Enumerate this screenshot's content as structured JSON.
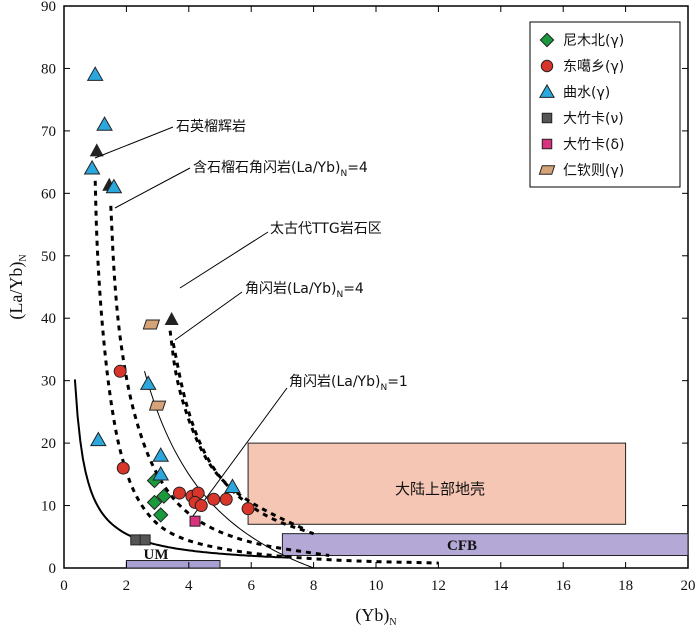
{
  "chart_data": {
    "type": "scatter",
    "xlabel": "(Yb)",
    "xlabel_sub": "N",
    "ylabel": "(La/Yb)",
    "ylabel_sub": "N",
    "xlim": [
      0,
      20
    ],
    "ylim": [
      0,
      90
    ],
    "x_ticks": [
      0,
      2,
      4,
      6,
      8,
      10,
      12,
      14,
      16,
      18,
      20
    ],
    "y_ticks": [
      0,
      10,
      20,
      30,
      40,
      50,
      60,
      70,
      80,
      90
    ],
    "series": [
      {
        "name": "尼木北(γ)",
        "marker": "diamond",
        "color": "#1a9a3c",
        "points": [
          [
            2.9,
            14
          ],
          [
            3.2,
            11.5
          ],
          [
            2.9,
            10.5
          ],
          [
            3.1,
            8.5
          ]
        ]
      },
      {
        "name": "东噶乡(γ)",
        "marker": "circle",
        "color": "#d9352a",
        "points": [
          [
            1.8,
            31.5
          ],
          [
            1.9,
            16
          ],
          [
            3.7,
            12
          ],
          [
            4.1,
            11.5
          ],
          [
            4.3,
            12
          ],
          [
            4.2,
            10.5
          ],
          [
            4.4,
            10
          ],
          [
            4.8,
            11
          ],
          [
            5.2,
            11
          ],
          [
            5.9,
            9.5
          ]
        ]
      },
      {
        "name": "曲水(γ)",
        "marker": "triangle",
        "color": "#2aa7dd",
        "points": [
          [
            1.0,
            79
          ],
          [
            1.3,
            71
          ],
          [
            0.9,
            64
          ],
          [
            1.6,
            61
          ],
          [
            2.7,
            29.5
          ],
          [
            3.1,
            18
          ],
          [
            3.1,
            15
          ],
          [
            1.1,
            20.5
          ],
          [
            5.4,
            13
          ]
        ]
      },
      {
        "name": "大竹卡(ν)",
        "marker": "square",
        "color": "#555555",
        "points": [
          [
            2.3,
            4.5
          ],
          [
            2.6,
            4.5
          ]
        ]
      },
      {
        "name": "大竹卡(δ)",
        "marker": "square",
        "color": "#d8327e",
        "points": [
          [
            4.2,
            7.5
          ]
        ]
      },
      {
        "name": "仁钦则(γ)",
        "marker": "parallelogram",
        "color": "#d6a278",
        "points": [
          [
            2.8,
            39
          ],
          [
            3.0,
            26
          ]
        ]
      }
    ],
    "reference_fields": {
      "upper_crust": {
        "label": "大陆上部地壳",
        "x": [
          5.9,
          18
        ],
        "y": [
          7,
          20
        ],
        "color": "#f5c6b3"
      },
      "cfb": {
        "label": "CFB",
        "x": [
          7,
          20
        ],
        "y": [
          2,
          5.5
        ],
        "color": "#b3a8d6"
      },
      "um": {
        "label": "UM",
        "x": [
          2,
          5
        ],
        "y": [
          0,
          1.2
        ],
        "color": "#a9a0d2"
      }
    },
    "annotations": {
      "garnet_pyroxenite": "石英榴辉岩",
      "garnet_amphibolite": "含石榴石角闪岩(La/Yb)",
      "garnet_amphibolite_sub": "N",
      "garnet_amphibolite_tail": "=4",
      "ttg": "太古代TTG岩石区",
      "amphibolite4": "角闪岩(La/Yb)",
      "amphibolite4_sub": "N",
      "amphibolite4_tail": "=4",
      "amphibolite1": "角闪岩(La/Yb)",
      "amphibolite1_sub": "N",
      "amphibolite1_tail": "=1"
    }
  }
}
